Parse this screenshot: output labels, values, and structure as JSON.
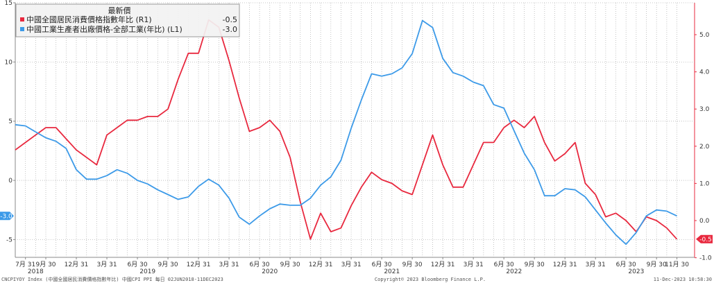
{
  "chart_data": {
    "type": "line",
    "legend": {
      "header": "最新價",
      "placement": "top-left",
      "entries": [
        {
          "label": "中國全國居民消費價格指數年比 (R1)",
          "value": "-0.5",
          "color": "#e8283e"
        },
        {
          "label": "中國工業生產者出廠價格-全部工業(年比) (L1)",
          "value": "-3.0",
          "color": "#3c9ae8"
        }
      ]
    },
    "x": [
      "2018-06",
      "2018-07",
      "2018-08",
      "2018-09",
      "2018-10",
      "2018-11",
      "2018-12",
      "2019-01",
      "2019-02",
      "2019-03",
      "2019-04",
      "2019-05",
      "2019-06",
      "2019-07",
      "2019-08",
      "2019-09",
      "2019-10",
      "2019-11",
      "2019-12",
      "2020-01",
      "2020-02",
      "2020-03",
      "2020-04",
      "2020-05",
      "2020-06",
      "2020-07",
      "2020-08",
      "2020-09",
      "2020-10",
      "2020-11",
      "2020-12",
      "2021-01",
      "2021-02",
      "2021-03",
      "2021-04",
      "2021-05",
      "2021-06",
      "2021-07",
      "2021-08",
      "2021-09",
      "2021-10",
      "2021-11",
      "2021-12",
      "2022-01",
      "2022-02",
      "2022-03",
      "2022-04",
      "2022-05",
      "2022-06",
      "2022-07",
      "2022-08",
      "2022-09",
      "2022-10",
      "2022-11",
      "2022-12",
      "2023-01",
      "2023-02",
      "2023-03",
      "2023-04",
      "2023-05",
      "2023-06",
      "2023-07",
      "2023-08",
      "2023-09",
      "2023-10",
      "2023-11"
    ],
    "series": [
      {
        "name": "中國全國居民消費價格指數年比 (R1)",
        "axis": "right",
        "color": "#e8283e",
        "values": [
          1.9,
          2.1,
          2.3,
          2.5,
          2.5,
          2.2,
          1.9,
          1.7,
          1.5,
          2.3,
          2.5,
          2.7,
          2.7,
          2.8,
          2.8,
          3.0,
          3.8,
          4.5,
          4.5,
          5.4,
          5.2,
          4.3,
          3.3,
          2.4,
          2.5,
          2.7,
          2.4,
          1.7,
          0.5,
          -0.5,
          0.2,
          -0.3,
          -0.2,
          0.4,
          0.9,
          1.3,
          1.1,
          1.0,
          0.8,
          0.7,
          1.5,
          2.3,
          1.5,
          0.9,
          0.9,
          1.5,
          2.1,
          2.1,
          2.5,
          2.7,
          2.5,
          2.8,
          2.1,
          1.6,
          1.8,
          2.1,
          1.0,
          0.7,
          0.1,
          0.2,
          0.0,
          -0.3,
          0.1,
          0.0,
          -0.2,
          -0.5
        ]
      },
      {
        "name": "中國工業生產者出廠價格-全部工業(年比) (L1)",
        "axis": "left",
        "color": "#3c9ae8",
        "values": [
          4.7,
          4.6,
          4.1,
          3.6,
          3.3,
          2.7,
          0.9,
          0.1,
          0.1,
          0.4,
          0.9,
          0.6,
          0.0,
          -0.3,
          -0.8,
          -1.2,
          -1.6,
          -1.4,
          -0.5,
          0.1,
          -0.4,
          -1.5,
          -3.1,
          -3.7,
          -3.0,
          -2.4,
          -2.0,
          -2.1,
          -2.1,
          -1.5,
          -0.4,
          0.3,
          1.7,
          4.4,
          6.8,
          9.0,
          8.8,
          9.0,
          9.5,
          10.7,
          13.5,
          12.9,
          10.3,
          9.1,
          8.8,
          8.3,
          8.0,
          6.4,
          6.1,
          4.2,
          2.3,
          0.9,
          -1.3,
          -1.3,
          -0.7,
          -0.8,
          -1.4,
          -2.5,
          -3.6,
          -4.6,
          -5.4,
          -4.4,
          -3.0,
          -2.5,
          -2.6,
          -3.0
        ]
      }
    ],
    "left_axis": {
      "min": -6.5,
      "max": 15,
      "ticks": [
        15,
        10,
        5,
        0,
        -5
      ]
    },
    "right_axis": {
      "min": -1.0,
      "max": 5.5,
      "ticks": [
        "5.0",
        "4.0",
        "3.0",
        "2.0",
        "1.0",
        "0.0",
        "-1.0"
      ]
    },
    "current_left_label": "-3.0",
    "current_right_label": "-0.5",
    "x_tick_labels": [
      {
        "i": 1,
        "text": "7月 31"
      },
      {
        "i": 3,
        "text": "9月 30"
      },
      {
        "i": 6,
        "text": "12月 31"
      },
      {
        "i": 9,
        "text": "3月 31"
      },
      {
        "i": 12,
        "text": "6月 30"
      },
      {
        "i": 15,
        "text": "9月 30"
      },
      {
        "i": 18,
        "text": "12月 31"
      },
      {
        "i": 21,
        "text": "3月 31"
      },
      {
        "i": 24,
        "text": "6月 30"
      },
      {
        "i": 27,
        "text": "9月 30"
      },
      {
        "i": 30,
        "text": "12月 31"
      },
      {
        "i": 33,
        "text": "3月 31"
      },
      {
        "i": 36,
        "text": "6月 30"
      },
      {
        "i": 39,
        "text": "9月 30"
      },
      {
        "i": 42,
        "text": "12月 31"
      },
      {
        "i": 45,
        "text": "3月 31"
      },
      {
        "i": 48,
        "text": "6月 30"
      },
      {
        "i": 51,
        "text": "9月 30"
      },
      {
        "i": 54,
        "text": "12月 31"
      },
      {
        "i": 57,
        "text": "3月 31"
      },
      {
        "i": 60,
        "text": "6月 30"
      },
      {
        "i": 63,
        "text": "9月 30"
      },
      {
        "i": 65,
        "text": "11月 30"
      }
    ],
    "year_labels": [
      {
        "i": 2,
        "text": "2018"
      },
      {
        "i": 13,
        "text": "2019"
      },
      {
        "i": 25,
        "text": "2020"
      },
      {
        "i": 37,
        "text": "2021"
      },
      {
        "i": 49,
        "text": "2022"
      },
      {
        "i": 61,
        "text": "2023"
      }
    ],
    "grid": true
  },
  "footer": {
    "left": "CNCPIYOY Index (中國全國居民消費價格指數年比) 中國CPI PPI 每日 02JUN2018-11DEC2023",
    "center": "Copyright© 2023 Bloomberg Finance L.P.",
    "right": "11-Dec-2023 10:58:30"
  }
}
